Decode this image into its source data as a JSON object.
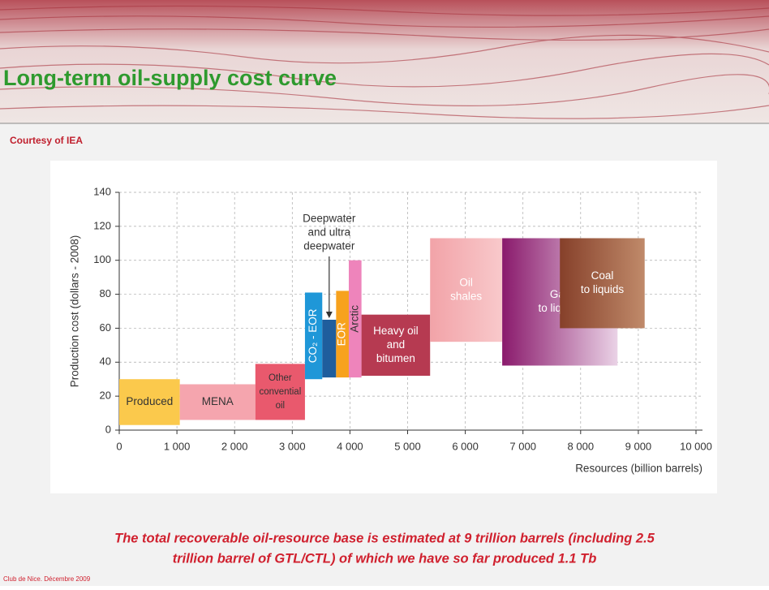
{
  "slide_title": "Long-term oil-supply cost curve",
  "source_note": "Courtesy of IEA",
  "chart_data": {
    "type": "cost_curve",
    "xlabel": "Resources (billion barrels)",
    "ylabel": "Production cost (dollars - 2008)",
    "xlim": [
      0,
      10000
    ],
    "ylim": [
      0,
      140
    ],
    "xticks": [
      0,
      {
        "value": 1000,
        "label": "1 000"
      },
      {
        "value": 2000,
        "label": "2 000"
      },
      {
        "value": 3000,
        "label": "3 000"
      },
      {
        "value": 4000,
        "label": "4 000"
      },
      {
        "value": 5000,
        "label": "5 000"
      },
      {
        "value": 6000,
        "label": "6 000"
      },
      {
        "value": 7000,
        "label": "7 000"
      },
      {
        "value": 8000,
        "label": "8 000"
      },
      {
        "value": 9000,
        "label": "9 000"
      },
      {
        "value": 10000,
        "label": "10 000"
      }
    ],
    "yticks": [
      0,
      20,
      40,
      60,
      80,
      100,
      120,
      140
    ],
    "grid": true,
    "annotation": [
      "Deepwater",
      "and ultra",
      "deepwater"
    ],
    "segments": [
      {
        "label": [
          "Produced"
        ],
        "x0": 0,
        "x1": 1050,
        "y0": 3,
        "y1": 30,
        "color": "#fbc94c",
        "label_color": "#333"
      },
      {
        "label": [
          "MENA"
        ],
        "x0": 1050,
        "x1": 2360,
        "y0": 6,
        "y1": 27,
        "color": "#f5a5ae",
        "label_color": "#333"
      },
      {
        "label": [
          "Other",
          "convential",
          "oil"
        ],
        "x0": 2360,
        "x1": 3220,
        "y0": 6,
        "y1": 39,
        "color": "#e9596d",
        "label_color": "#333"
      },
      {
        "label": [
          "CO₂ - EOR"
        ],
        "rotated": true,
        "x0": 3220,
        "x1": 3520,
        "y0": 30,
        "y1": 81,
        "color": "#1f97d8",
        "label_color": "#fff"
      },
      {
        "x0": 3520,
        "x1": 3760,
        "y0": 31,
        "y1": 65,
        "color": "#1f5e9d"
      },
      {
        "label": [
          "EOR"
        ],
        "rotated": true,
        "x0": 3760,
        "x1": 3980,
        "y0": 31,
        "y1": 82,
        "color": "#f7a21d",
        "label_color": "#fff"
      },
      {
        "label": [
          "Arctic"
        ],
        "rotated": true,
        "x0": 3980,
        "x1": 4200,
        "y0": 31,
        "y1": 100,
        "color": "#ee84bb",
        "label_color": "#333"
      },
      {
        "label": [
          "Heavy oil",
          "and",
          "bitumen"
        ],
        "x0": 4200,
        "x1": 5390,
        "y0": 32,
        "y1": 68,
        "color": "#b63a51",
        "label_color": "#fff"
      },
      {
        "label": [
          "Oil",
          "shales"
        ],
        "x0": 5390,
        "x1": 6640,
        "y0": 52,
        "y1": 113,
        "color": "#f2a3a8",
        "gradient_to": "#f8c9cb",
        "label_color": "#fff"
      },
      {
        "label": [
          "Gas",
          "to liquids"
        ],
        "x0": 6640,
        "x1": 8640,
        "y0": 38,
        "y1": 113,
        "color": "#8a1a6c",
        "gradient_to": "#ead2e6",
        "label_color": "#fff"
      },
      {
        "label": [
          "Coal",
          "to liquids"
        ],
        "x0": 7640,
        "x1": 9110,
        "y0": 60,
        "y1": 113,
        "color": "#86402a",
        "gradient_to": "#c08a6a",
        "label_color": "#fff"
      }
    ]
  },
  "conclusion": [
    "The total recoverable oil-resource base is estimated at 9 trillion barrels (including 2.5",
    "trillion barrel of GTL/CTL) of which we have so far produced 1.1 Tb"
  ],
  "footer": "Club de Nice. Décembre 2009"
}
